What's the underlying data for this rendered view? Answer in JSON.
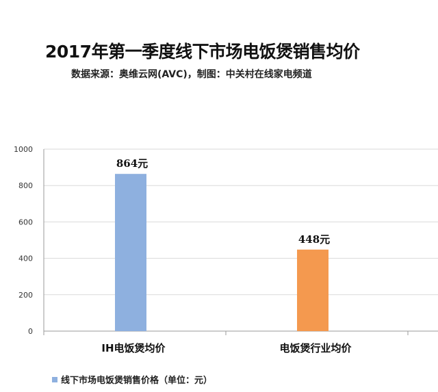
{
  "header": {
    "title": "2017年第一季度线下市场电饭煲销售均价",
    "subtitle": "数据来源：奥维云网(AVC)，制图：中关村在线家电频道"
  },
  "legend": {
    "label": "线下市场电饭煲销售价格（单位：元）",
    "color": "#8eb0df"
  },
  "chart_data": {
    "type": "bar",
    "categories": [
      "IH电饭煲均价",
      "电饭煲行业均价"
    ],
    "values": [
      864,
      448
    ],
    "data_labels": [
      "864元",
      "448元"
    ],
    "colors": [
      "#8eb0df",
      "#f4994f"
    ],
    "series": [
      {
        "name": "线下市场电饭煲销售价格（单位：元）",
        "values": [
          864,
          448
        ]
      }
    ],
    "ylim": [
      0,
      1000
    ],
    "yticks": [
      0,
      200,
      400,
      600,
      800,
      1000
    ],
    "grid": true,
    "legend_position": "bottom-left"
  }
}
